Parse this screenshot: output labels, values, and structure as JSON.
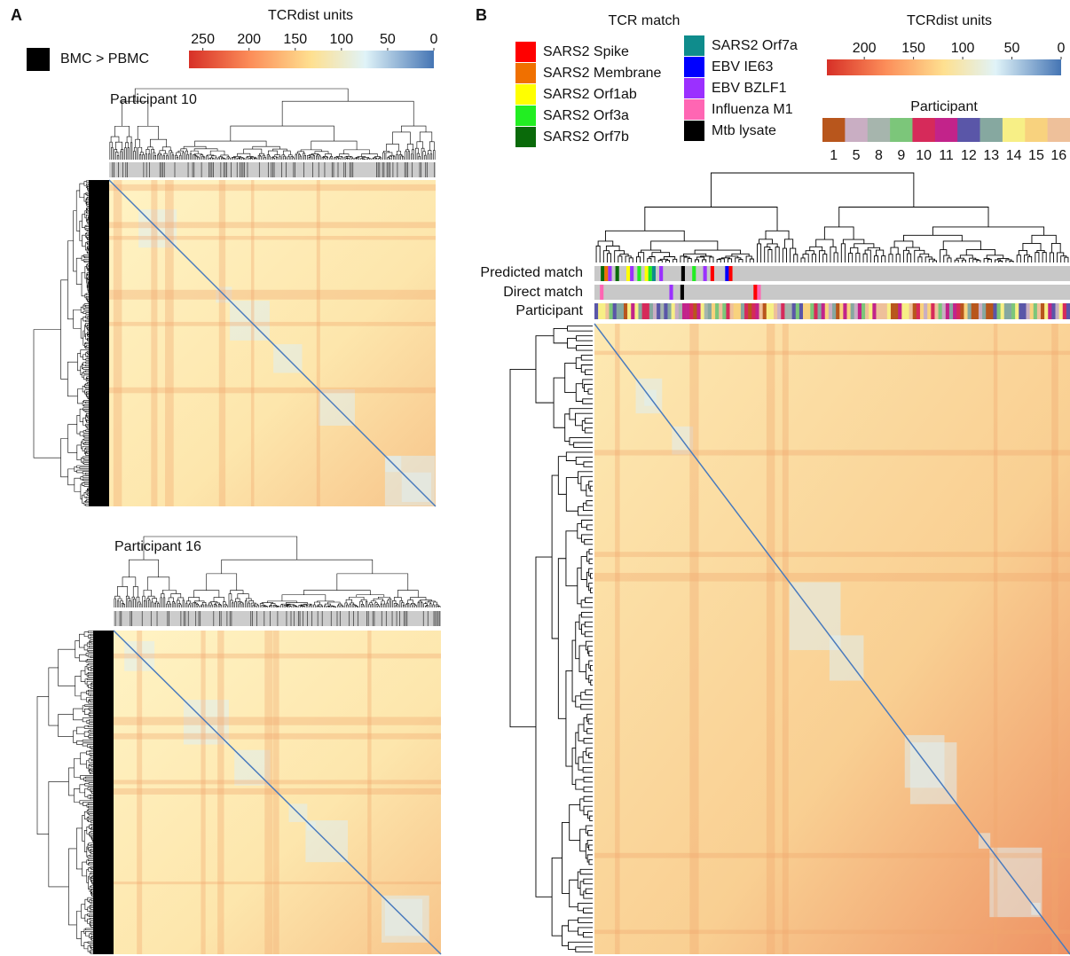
{
  "panel_a": {
    "label": "A",
    "legend": {
      "label": "BMC > PBMC",
      "color": "#000000"
    },
    "colorbar": {
      "title": "TCRdist units",
      "lim": [
        265,
        0
      ],
      "ticks": [
        250,
        200,
        150,
        100,
        50,
        0
      ]
    },
    "heatmaps": [
      {
        "title": "Participant 10"
      },
      {
        "title": "Participant 16"
      }
    ]
  },
  "panel_b": {
    "label": "B",
    "tcr_match": {
      "title": "TCR match",
      "entries": [
        {
          "name": "SARS2 Spike",
          "color": "#ff0000"
        },
        {
          "name": "SARS2 Membrane",
          "color": "#f07000"
        },
        {
          "name": "SARS2 Orf1ab",
          "color": "#ffff00"
        },
        {
          "name": "SARS2 Orf3a",
          "color": "#22ee22"
        },
        {
          "name": "SARS2 Orf7b",
          "color": "#0a6a0a"
        },
        {
          "name": "SARS2 Orf7a",
          "color": "#0f8c8c"
        },
        {
          "name": "EBV IE63",
          "color": "#0000ff"
        },
        {
          "name": "EBV BZLF1",
          "color": "#9b30ff"
        },
        {
          "name": "Influenza M1",
          "color": "#ff66b3"
        },
        {
          "name": "Mtb lysate",
          "color": "#000000"
        }
      ]
    },
    "colorbar": {
      "title": "TCRdist units",
      "lim": [
        238,
        0
      ],
      "ticks": [
        200,
        150,
        100,
        50,
        0
      ]
    },
    "participant_legend": {
      "title": "Participant",
      "entries": [
        {
          "name": "1",
          "color": "#b8561c"
        },
        {
          "name": "5",
          "color": "#c9aec3"
        },
        {
          "name": "8",
          "color": "#a6b5ad"
        },
        {
          "name": "9",
          "color": "#7cc67a"
        },
        {
          "name": "10",
          "color": "#d62a5a"
        },
        {
          "name": "11",
          "color": "#c2238a"
        },
        {
          "name": "12",
          "color": "#5a56a8"
        },
        {
          "name": "13",
          "color": "#86a8a0"
        },
        {
          "name": "14",
          "color": "#f7ef86"
        },
        {
          "name": "15",
          "color": "#f8d27e"
        },
        {
          "name": "16",
          "color": "#eec09a"
        }
      ]
    },
    "row_labels": [
      "Predicted match",
      "Direct match",
      "Participant"
    ]
  }
}
